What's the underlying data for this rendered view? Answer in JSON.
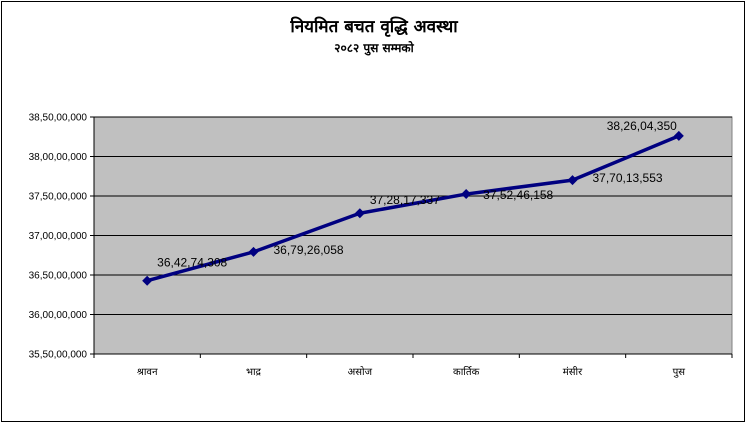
{
  "chart_data": {
    "type": "line",
    "title": "नियमित बचत वृद्धि अवस्था",
    "subtitle": "२०८२ पुस सम्मको",
    "xlabel": "",
    "ylabel": "",
    "categories": [
      "श्रावन",
      "भाद्र",
      "असोज",
      "कार्तिक",
      "मंसीर",
      "पुस"
    ],
    "series": [
      {
        "values": [
          364274308,
          367926058,
          372817337,
          375246158,
          377013553,
          382604350
        ],
        "labels": [
          "36,42,74,308",
          "36,79,26,058",
          "37,28,17,337",
          "37,52,46,158",
          "37,70,13,553",
          "38,26,04,350"
        ]
      }
    ],
    "ylim": [
      355000000,
      385000000
    ],
    "yticks": [
      355000000,
      360000000,
      365000000,
      370000000,
      375000000,
      380000000,
      385000000
    ],
    "ytick_labels": [
      "35,50,00,000",
      "36,00,00,000",
      "36,50,00,000",
      "37,00,00,000",
      "37,50,00,000",
      "38,00,00,000",
      "38,50,00,000"
    ],
    "grid": true,
    "legend": "none",
    "colors": {
      "line": "#000080",
      "plot_bg": "#c0c0c0",
      "grid": "#000000"
    }
  }
}
